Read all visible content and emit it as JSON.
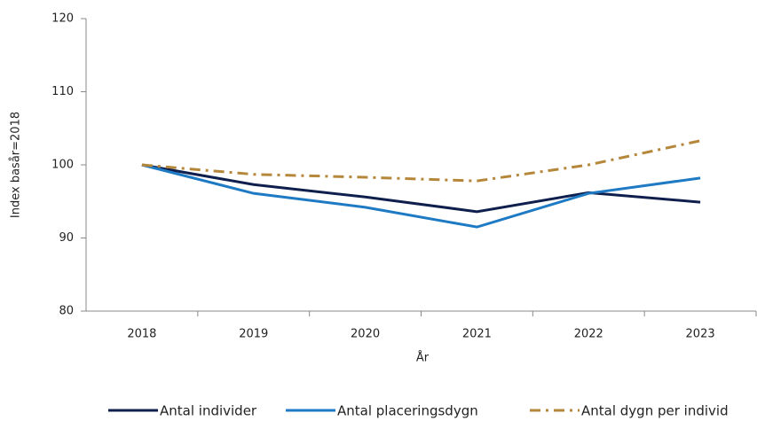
{
  "chart_data": {
    "type": "line",
    "categories": [
      "2018",
      "2019",
      "2020",
      "2021",
      "2022",
      "2023"
    ],
    "series": [
      {
        "name": "Antal individer",
        "color": "#0f1f4d",
        "dash": "solid",
        "values": [
          100,
          97.3,
          95.6,
          93.6,
          96.2,
          94.9
        ]
      },
      {
        "name": "Antal placeringsdygn",
        "color": "#1f7ac4",
        "dash": "solid",
        "values": [
          100,
          96.1,
          94.2,
          91.5,
          96.1,
          98.2
        ]
      },
      {
        "name": "Antal dygn per individ",
        "color": "#b5873a",
        "dash": "dashdot",
        "values": [
          100,
          98.7,
          98.3,
          97.8,
          100.0,
          103.3
        ]
      }
    ],
    "ylabel": "Index basår=2018",
    "xlabel": "År",
    "ylim": [
      80,
      120
    ],
    "yticks": [
      80,
      90,
      100,
      110,
      120
    ],
    "grid": false,
    "legend": "bottom"
  }
}
